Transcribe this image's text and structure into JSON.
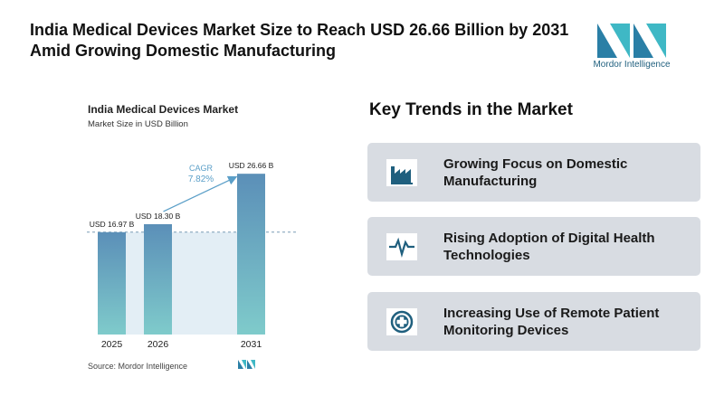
{
  "header": {
    "title": "India Medical Devices Market Size to Reach USD 26.66 Billion by 2031 Amid Growing Domestic Manufacturing",
    "logo": "Mordor Intelligence"
  },
  "chart_data": {
    "type": "bar",
    "title": "India Medical Devices Market",
    "subtitle": "Market Size in USD Billion",
    "categories": [
      "2025",
      "2026",
      "2031"
    ],
    "values": [
      16.97,
      18.3,
      26.66
    ],
    "value_labels": [
      "USD 16.97 B",
      "USD 18.30 B",
      "USD 26.66 B"
    ],
    "annotation": {
      "label": "CAGR",
      "value": "7.82%"
    },
    "source": "Source: Mordor Intelligence",
    "color": "#5f93b9"
  },
  "trends": {
    "title": "Key Trends in the Market",
    "items": [
      "Growing Focus on Domestic Manufacturing",
      "Rising Adoption of Digital Health Technologies",
      "Increasing Use of Remote Patient Monitoring Devices"
    ]
  }
}
